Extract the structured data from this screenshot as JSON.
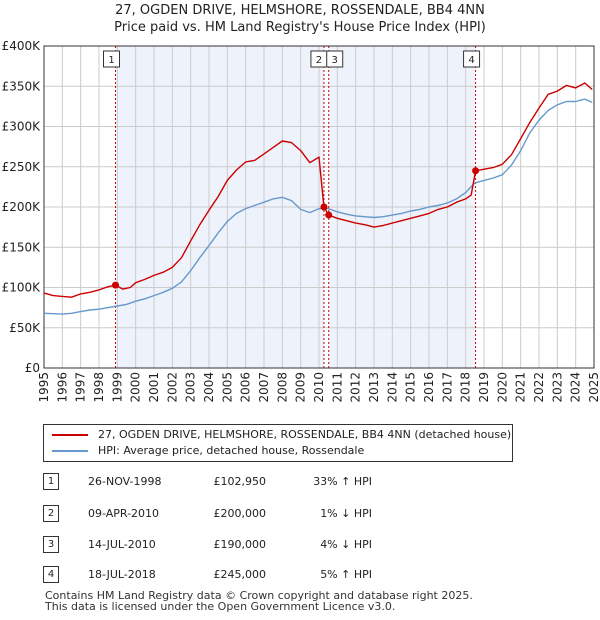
{
  "title_line1": "27, OGDEN DRIVE, HELMSHORE, ROSSENDALE, BB4 4NN",
  "title_line2": "Price paid vs. HM Land Registry's House Price Index (HPI)",
  "colors": {
    "red": "#cc0000",
    "blue": "#6699cc",
    "shade": "#eef2fb",
    "grid": "#cccccc"
  },
  "chart_data": {
    "type": "line",
    "xlim": [
      1995,
      2025
    ],
    "ylim": [
      0,
      400000
    ],
    "y_ticks": [
      {
        "value": 0,
        "label": "£0"
      },
      {
        "value": 50000,
        "label": "£50K"
      },
      {
        "value": 100000,
        "label": "£100K"
      },
      {
        "value": 150000,
        "label": "£150K"
      },
      {
        "value": 200000,
        "label": "£200K"
      },
      {
        "value": 250000,
        "label": "£250K"
      },
      {
        "value": 300000,
        "label": "£300K"
      },
      {
        "value": 350000,
        "label": "£350K"
      },
      {
        "value": 400000,
        "label": "£400K"
      }
    ],
    "x_ticks": [
      "1995",
      "1996",
      "1997",
      "1998",
      "1999",
      "2000",
      "2001",
      "2002",
      "2003",
      "2004",
      "2005",
      "2006",
      "2007",
      "2008",
      "2009",
      "2010",
      "2011",
      "2012",
      "2013",
      "2014",
      "2015",
      "2016",
      "2017",
      "2018",
      "2019",
      "2020",
      "2021",
      "2022",
      "2023",
      "2024",
      "2025"
    ],
    "shaded_ranges": [
      [
        1998.9,
        2010.27
      ],
      [
        2010.53,
        2018.54
      ]
    ],
    "series": [
      {
        "name": "27, OGDEN DRIVE, HELMSHORE, ROSSENDALE, BB4 4NN (detached house)",
        "color": "red",
        "x": [
          1995,
          1995.5,
          1996,
          1996.5,
          1997,
          1997.5,
          1998,
          1998.5,
          1998.9,
          1999.3,
          1999.7,
          2000,
          2000.5,
          2001,
          2001.5,
          2002,
          2002.5,
          2003,
          2003.5,
          2004,
          2004.5,
          2005,
          2005.5,
          2006,
          2006.5,
          2007,
          2007.5,
          2008,
          2008.5,
          2009,
          2009.5,
          2010,
          2010.27,
          2010.4,
          2010.53,
          2011,
          2011.5,
          2012,
          2012.5,
          2013,
          2013.5,
          2014,
          2014.5,
          2015,
          2015.5,
          2016,
          2016.5,
          2017,
          2017.5,
          2018,
          2018.3,
          2018.54,
          2019,
          2019.5,
          2020,
          2020.5,
          2021,
          2021.5,
          2022,
          2022.5,
          2023,
          2023.5,
          2024,
          2024.5,
          2024.9
        ],
        "values": [
          93000,
          90000,
          89000,
          88000,
          92000,
          94000,
          97000,
          101000,
          102950,
          98000,
          100000,
          106000,
          110000,
          115000,
          119000,
          125000,
          137000,
          158000,
          178000,
          196000,
          213000,
          233000,
          246000,
          256000,
          258000,
          266000,
          274000,
          282000,
          280000,
          270000,
          255000,
          262000,
          200000,
          195000,
          190000,
          186000,
          183000,
          180000,
          178000,
          175000,
          177000,
          180000,
          183000,
          186000,
          189000,
          192000,
          197000,
          200000,
          206000,
          210000,
          215000,
          245000,
          247000,
          249000,
          253000,
          265000,
          285000,
          305000,
          323000,
          340000,
          344000,
          351000,
          348000,
          354000,
          346000
        ]
      },
      {
        "name": "HPI: Average price, detached house, Rossendale",
        "color": "blue",
        "x": [
          1995,
          1995.5,
          1996,
          1996.5,
          1997,
          1997.5,
          1998,
          1998.5,
          1999,
          1999.5,
          2000,
          2000.5,
          2001,
          2001.5,
          2002,
          2002.5,
          2003,
          2003.5,
          2004,
          2004.5,
          2005,
          2005.5,
          2006,
          2006.5,
          2007,
          2007.5,
          2008,
          2008.5,
          2009,
          2009.5,
          2010,
          2010.5,
          2011,
          2011.5,
          2012,
          2012.5,
          2013,
          2013.5,
          2014,
          2014.5,
          2015,
          2015.5,
          2016,
          2016.5,
          2017,
          2017.5,
          2018,
          2018.5,
          2019,
          2019.5,
          2020,
          2020.5,
          2021,
          2021.5,
          2022,
          2022.5,
          2023,
          2023.5,
          2024,
          2024.5,
          2024.9
        ],
        "values": [
          68000,
          67500,
          67000,
          68000,
          70000,
          72000,
          73000,
          75000,
          77000,
          79000,
          83000,
          86000,
          90000,
          94000,
          99000,
          107000,
          121000,
          137000,
          152000,
          168000,
          182000,
          192000,
          198000,
          202000,
          206000,
          210000,
          212000,
          208000,
          197000,
          193000,
          198000,
          198000,
          194000,
          191000,
          189000,
          188000,
          187000,
          188000,
          190000,
          192000,
          195000,
          197000,
          200000,
          202000,
          205000,
          210000,
          218000,
          230000,
          233000,
          236000,
          240000,
          252000,
          270000,
          292000,
          308000,
          320000,
          327000,
          331000,
          331000,
          334000,
          330000
        ]
      }
    ],
    "sales": [
      {
        "label": "1",
        "x": 1998.9,
        "value": 102950
      },
      {
        "label": "2",
        "x": 2010.27,
        "value": 200000
      },
      {
        "label": "3",
        "x": 2010.53,
        "value": 190000
      },
      {
        "label": "4",
        "x": 2018.54,
        "value": 245000
      }
    ]
  },
  "legend": {
    "property": "27, OGDEN DRIVE, HELMSHORE, ROSSENDALE, BB4 4NN (detached house)",
    "hpi": "HPI: Average price, detached house, Rossendale"
  },
  "transactions": [
    {
      "num": "1",
      "date": "26-NOV-1998",
      "price": "£102,950",
      "hpi": "33% ↑ HPI"
    },
    {
      "num": "2",
      "date": "09-APR-2010",
      "price": "£200,000",
      "hpi": "1% ↓ HPI"
    },
    {
      "num": "3",
      "date": "14-JUL-2010",
      "price": "£190,000",
      "hpi": "4% ↓ HPI"
    },
    {
      "num": "4",
      "date": "18-JUL-2018",
      "price": "£245,000",
      "hpi": "5% ↑ HPI"
    }
  ],
  "footer_line1": "Contains HM Land Registry data © Crown copyright and database right 2025.",
  "footer_line2": "This data is licensed under the Open Government Licence v3.0."
}
